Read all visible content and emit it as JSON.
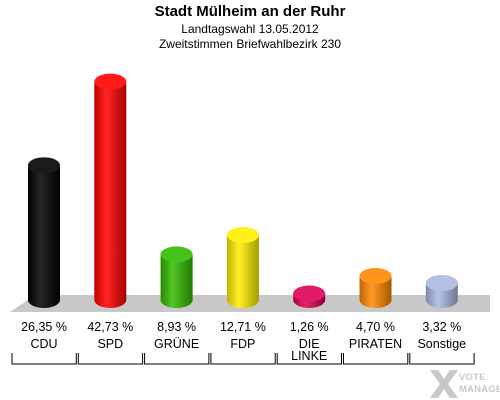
{
  "header": {
    "title": "Stadt Mülheim an der Ruhr",
    "subtitle": "Landtagswahl 13.05.2012",
    "subtitle2": "Zweitstimmen Briefwahlbezirk 230"
  },
  "chart_data": {
    "type": "bar",
    "title": "Stadt Mülheim an der Ruhr",
    "subtitle": "Landtagswahl 13.05.2012 · Zweitstimmen Briefwahlbezirk 230",
    "categories": [
      "CDU",
      "SPD",
      "GRÜNE",
      "FDP",
      "DIE LINKE",
      "PIRATEN",
      "Sonstige"
    ],
    "category_lines": [
      [
        "CDU"
      ],
      [
        "SPD"
      ],
      [
        "GRÜNE"
      ],
      [
        "FDP"
      ],
      [
        "DIE",
        "LINKE"
      ],
      [
        "PIRATEN"
      ],
      [
        "Sonstige"
      ]
    ],
    "values": [
      26.35,
      42.73,
      8.93,
      12.71,
      1.26,
      4.7,
      3.32
    ],
    "value_labels": [
      "26,35 %",
      "42,73 %",
      "8,93 %",
      "12,71 %",
      "1,26 %",
      "4,70 %",
      "3,32 %"
    ],
    "colors": [
      "#000000",
      "#ff0000",
      "#33bb00",
      "#ffee00",
      "#dd0055",
      "#ff8800",
      "#aab8e0"
    ],
    "ylim": [
      0,
      45
    ],
    "legend": "none",
    "grid": false
  },
  "logo": {
    "line1": "VOTE",
    "line2": "MANAGER"
  }
}
